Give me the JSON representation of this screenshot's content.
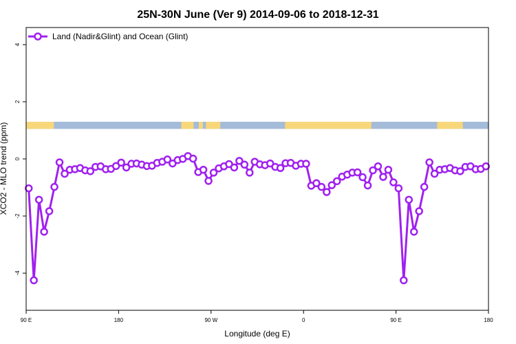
{
  "chart_data": {
    "type": "line",
    "title": "25N-30N June (Ver 9)   2014-09-06 to 2018-12-31",
    "xlabel": "Longitude (deg E)",
    "ylabel": "XCO2 - MLO trend (ppm)",
    "xlim": [
      90,
      540
    ],
    "ylim": [
      -5.3,
      4.6
    ],
    "x_ticks": [
      {
        "value": 90,
        "label": "90 E"
      },
      {
        "value": 180,
        "label": "180"
      },
      {
        "value": 270,
        "label": "90 W"
      },
      {
        "value": 360,
        "label": "0"
      },
      {
        "value": 450,
        "label": "90 E"
      },
      {
        "value": 540,
        "label": "180"
      }
    ],
    "y_ticks": [
      {
        "value": -4,
        "label": "-4"
      },
      {
        "value": -2,
        "label": "-2"
      },
      {
        "value": 0,
        "label": "0"
      },
      {
        "value": 2,
        "label": "2"
      },
      {
        "value": 4,
        "label": "4"
      }
    ],
    "legend_position": "top-left",
    "series": [
      {
        "name": "Land (Nadir&Glint) and Ocean (Glint)",
        "color": "#a020f0",
        "x": [
          92.5,
          97.5,
          102.5,
          107.5,
          112.5,
          117.5,
          122.5,
          127.5,
          132.5,
          137.5,
          142.5,
          147.5,
          152.5,
          157.5,
          162.5,
          167.5,
          172.5,
          177.5,
          182.5,
          187.5,
          192.5,
          197.5,
          202.5,
          207.5,
          212.5,
          217.5,
          222.5,
          227.5,
          232.5,
          237.5,
          242.5,
          247.5,
          252.5,
          257.5,
          262.5,
          267.5,
          272.5,
          277.5,
          282.5,
          287.5,
          292.5,
          297.5,
          302.5,
          307.5,
          312.5,
          317.5,
          322.5,
          327.5,
          332.5,
          337.5,
          342.5,
          347.5,
          352.5,
          357.5,
          362.5,
          367.5,
          372.5,
          377.5,
          382.5,
          387.5,
          392.5,
          397.5,
          402.5,
          407.5,
          412.5,
          417.5,
          422.5,
          427.5,
          432.5,
          437.5,
          442.5,
          447.5,
          452.5,
          457.5,
          462.5,
          467.5,
          472.5,
          477.5,
          482.5,
          487.5,
          492.5,
          497.5,
          502.5,
          507.5,
          512.5,
          517.5,
          522.5,
          527.5,
          532.5,
          537.5
        ],
        "y": [
          -1.03,
          -4.25,
          -1.43,
          -2.55,
          -1.83,
          -0.98,
          -0.12,
          -0.52,
          -0.38,
          -0.36,
          -0.32,
          -0.4,
          -0.43,
          -0.28,
          -0.26,
          -0.36,
          -0.35,
          -0.25,
          -0.13,
          -0.3,
          -0.17,
          -0.16,
          -0.2,
          -0.25,
          -0.24,
          -0.14,
          -0.1,
          -0.02,
          -0.16,
          -0.04,
          0.0,
          0.1,
          0.01,
          -0.46,
          -0.38,
          -0.77,
          -0.48,
          -0.33,
          -0.26,
          -0.18,
          -0.3,
          -0.07,
          -0.2,
          -0.48,
          -0.1,
          -0.19,
          -0.22,
          -0.16,
          -0.28,
          -0.32,
          -0.15,
          -0.14,
          -0.24,
          -0.17,
          -0.17,
          -0.94,
          -0.85,
          -0.98,
          -1.16,
          -0.92,
          -0.78,
          -0.62,
          -0.55,
          -0.48,
          -0.47,
          -0.64,
          -0.93,
          -0.4,
          -0.26,
          -0.63,
          -0.38,
          -0.82,
          -1.03,
          -4.25,
          -1.43,
          -2.55,
          -1.83,
          -0.98,
          -0.12,
          -0.52,
          -0.38,
          -0.36,
          -0.32,
          -0.4,
          -0.43,
          -0.28,
          -0.26,
          -0.36,
          -0.35,
          -0.26
        ]
      }
    ],
    "surface_strip": {
      "y_range": [
        1.05,
        1.3
      ],
      "colors": {
        "land": "#f7d77a",
        "ocean": "#a4bbd9"
      },
      "land_segments": [
        [
          90,
          117
        ],
        [
          241,
          253
        ],
        [
          258,
          262
        ],
        [
          265,
          267
        ],
        [
          267,
          279
        ],
        [
          342,
          426
        ],
        [
          490,
          515
        ]
      ]
    }
  }
}
